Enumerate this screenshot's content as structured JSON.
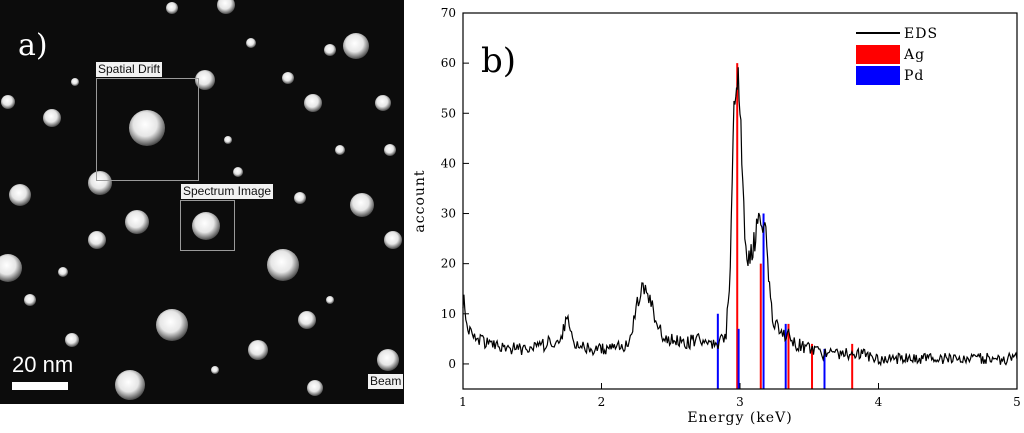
{
  "panel_a": {
    "letter": "a)",
    "labels": {
      "spatial_drift": "Spatial Drift",
      "spectrum_image": "Spectrum Image",
      "beam": "Beam"
    },
    "scale_bar": "20 nm"
  },
  "chart_data": {
    "type": "line",
    "panel_letter": "b)",
    "xlabel": "Energy (keV)",
    "ylabel": "account",
    "xlim": [
      1,
      5
    ],
    "ylim": [
      -5,
      70
    ],
    "x_ticks": [
      1,
      2,
      3,
      4,
      5
    ],
    "y_ticks": [
      0,
      10,
      20,
      30,
      40,
      50,
      60,
      70
    ],
    "grid": false,
    "legend_position": "top-right",
    "series": [
      {
        "name": "EDS",
        "color": "#000000",
        "x": [
          1.0,
          1.02,
          1.05,
          1.1,
          1.2,
          1.3,
          1.4,
          1.5,
          1.6,
          1.7,
          1.75,
          1.8,
          1.9,
          2.0,
          2.1,
          2.2,
          2.25,
          2.3,
          2.35,
          2.4,
          2.45,
          2.5,
          2.6,
          2.7,
          2.8,
          2.85,
          2.9,
          2.93,
          2.95,
          2.97,
          2.98,
          3.0,
          3.02,
          3.05,
          3.08,
          3.1,
          3.12,
          3.15,
          3.18,
          3.2,
          3.22,
          3.25,
          3.3,
          3.35,
          3.4,
          3.5,
          3.6,
          3.7,
          3.8,
          3.9,
          4.0,
          4.2,
          4.4,
          4.6,
          4.8,
          5.0
        ],
        "y": [
          13,
          10,
          6,
          5,
          4,
          3,
          3,
          3,
          4,
          5,
          9,
          4,
          3,
          3,
          3,
          4,
          12,
          15,
          13,
          8,
          5,
          5,
          4,
          5,
          4,
          4,
          6,
          20,
          45,
          57,
          58,
          50,
          35,
          20,
          22,
          24,
          27,
          28,
          27,
          22,
          12,
          8,
          6,
          6,
          4,
          3,
          2,
          2,
          2,
          2,
          1,
          1,
          1,
          1,
          1,
          1
        ]
      }
    ],
    "markers": [
      {
        "name": "Ag",
        "color": "#ff0000",
        "lines": [
          {
            "x": 2.98,
            "y": 60
          },
          {
            "x": 3.15,
            "y": 20
          },
          {
            "x": 3.35,
            "y": 8
          },
          {
            "x": 3.52,
            "y": 4
          },
          {
            "x": 3.81,
            "y": 4
          }
        ]
      },
      {
        "name": "Pd",
        "color": "#0000ff",
        "lines": [
          {
            "x": 2.84,
            "y": 10
          },
          {
            "x": 2.99,
            "y": 7
          },
          {
            "x": 3.17,
            "y": 30
          },
          {
            "x": 3.33,
            "y": 8
          },
          {
            "x": 3.61,
            "y": 3
          }
        ]
      }
    ]
  }
}
